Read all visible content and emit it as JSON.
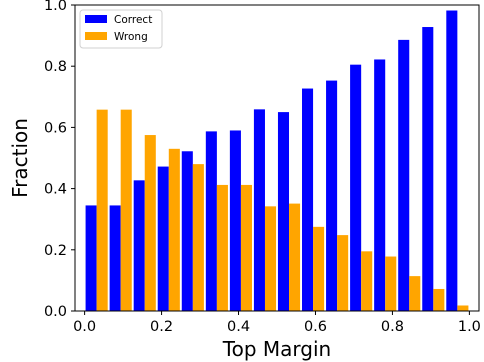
{
  "chart_data": {
    "type": "bar",
    "xlabel": "Top Margin",
    "ylabel": "Fraction",
    "xlim": [
      -0.025,
      1.025
    ],
    "ylim": [
      0.0,
      1.0
    ],
    "xticks": [
      "0.0",
      "0.2",
      "0.4",
      "0.6",
      "0.8",
      "1.0"
    ],
    "yticks": [
      "0.0",
      "0.2",
      "0.4",
      "0.6",
      "0.8",
      "1.0"
    ],
    "grid": false,
    "legend_position": "top-left",
    "bin_width": 0.0625,
    "bin_starts": [
      0.0,
      0.0625,
      0.125,
      0.1875,
      0.25,
      0.3125,
      0.375,
      0.4375,
      0.5,
      0.5625,
      0.625,
      0.6875,
      0.75,
      0.8125,
      0.875,
      0.9375
    ],
    "series": [
      {
        "name": "Correct",
        "color": "#0000ff",
        "values": [
          0.345,
          0.345,
          0.427,
          0.472,
          0.522,
          0.587,
          0.59,
          0.659,
          0.65,
          0.727,
          0.753,
          0.805,
          0.822,
          0.886,
          0.928,
          0.982
        ]
      },
      {
        "name": "Wrong",
        "color": "#ffa500",
        "values": [
          0.658,
          0.658,
          0.575,
          0.53,
          0.48,
          0.412,
          0.412,
          0.342,
          0.351,
          0.275,
          0.248,
          0.195,
          0.178,
          0.114,
          0.072,
          0.018
        ]
      }
    ]
  }
}
